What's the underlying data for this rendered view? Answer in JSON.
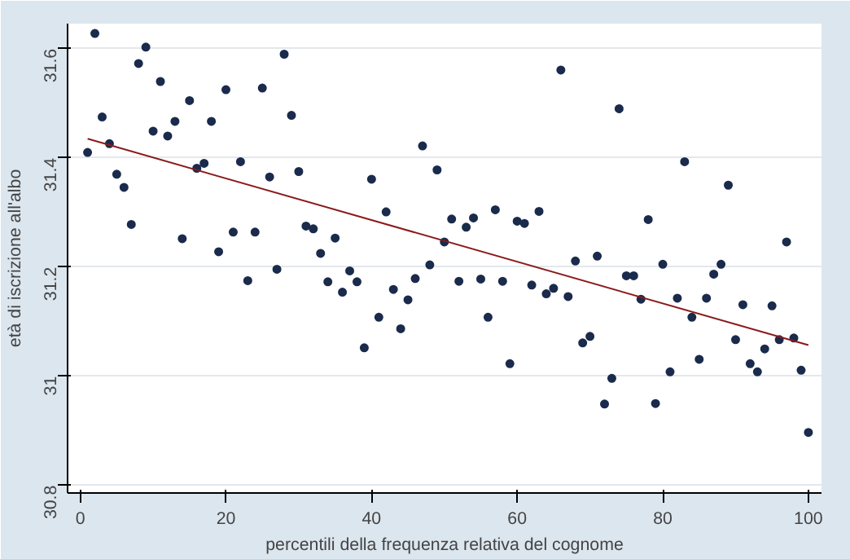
{
  "chart_data": {
    "type": "scatter",
    "xlabel": "percentili della frequenza relativa del cognome",
    "ylabel": "età di iscrizione all'albo",
    "xlim": [
      -1.75,
      101.8
    ],
    "ylim": [
      30.786,
      31.646
    ],
    "xticks": [
      0,
      20,
      40,
      60,
      80,
      100
    ],
    "yticks": [
      30.8,
      31,
      31.2,
      31.4,
      31.6
    ],
    "grid": "y",
    "marker": "circle",
    "series": [
      {
        "color": "#1a2b4c",
        "x": [
          1,
          2,
          3,
          4,
          5,
          6,
          7,
          8,
          9,
          10,
          11,
          12,
          13,
          14,
          15,
          16,
          17,
          18,
          19,
          20,
          21,
          22,
          23,
          24,
          25,
          26,
          27,
          28,
          29,
          30,
          31,
          32,
          33,
          34,
          35,
          36,
          37,
          38,
          39,
          40,
          41,
          42,
          43,
          44,
          45,
          46,
          47,
          48,
          49,
          50,
          51,
          52,
          53,
          54,
          55,
          56,
          57,
          58,
          59,
          60,
          61,
          62,
          63,
          64,
          65,
          66,
          67,
          68,
          69,
          70,
          71,
          72,
          73,
          74,
          75,
          76,
          77,
          78,
          79,
          80,
          81,
          82,
          83,
          84,
          85,
          86,
          87,
          88,
          89,
          90,
          91,
          92,
          93,
          94,
          95,
          96,
          97,
          98,
          99,
          100
        ],
        "values": [
          31.41,
          31.628,
          31.475,
          31.426,
          31.37,
          31.346,
          31.278,
          31.573,
          31.603,
          31.449,
          31.54,
          31.44,
          31.467,
          31.252,
          31.505,
          31.381,
          31.39,
          31.467,
          31.228,
          31.525,
          31.264,
          31.393,
          31.175,
          31.264,
          31.528,
          31.365,
          31.196,
          31.59,
          31.478,
          31.375,
          31.275,
          31.27,
          31.225,
          31.173,
          31.253,
          31.154,
          31.193,
          31.173,
          31.052,
          31.361,
          31.108,
          31.301,
          31.159,
          31.087,
          31.14,
          31.179,
          31.422,
          31.204,
          31.378,
          31.246,
          31.288,
          31.174,
          31.273,
          31.29,
          31.178,
          31.108,
          31.305,
          31.174,
          31.023,
          31.284,
          31.28,
          31.167,
          31.302,
          31.151,
          31.161,
          31.561,
          31.146,
          31.211,
          31.061,
          31.073,
          31.22,
          30.949,
          30.996,
          31.49,
          31.184,
          31.184,
          31.141,
          31.287,
          30.95,
          31.205,
          31.008,
          31.143,
          31.393,
          31.108,
          31.031,
          31.143,
          31.187,
          31.205,
          31.35,
          31.067,
          31.131,
          31.023,
          31.008,
          31.05,
          31.129,
          31.067,
          31.246,
          31.07,
          31.011,
          30.897
        ]
      },
      {
        "type": "line",
        "color": "#8b1a1a",
        "marker": "none",
        "line_style": "solid",
        "x": [
          1,
          100
        ],
        "values": [
          31.435,
          31.057
        ]
      }
    ]
  }
}
